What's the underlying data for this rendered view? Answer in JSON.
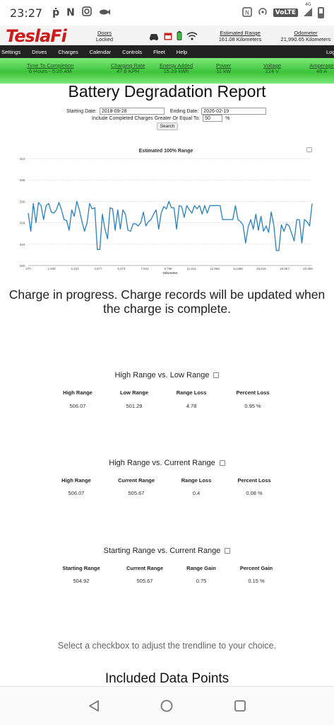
{
  "status": {
    "time": "23:27",
    "icons": [
      "p-icon",
      "n-icon",
      "instagram-icon",
      "fish-icon"
    ],
    "right_icons": [
      "nfc-icon",
      "hotspot-icon",
      "volte-icon",
      "signal-icon",
      "battery-icon"
    ],
    "volte": "VoLTE",
    "network": "4G"
  },
  "app": {
    "logo": "TeslaFi",
    "doors_label": "Doors",
    "doors_value": "Locked",
    "est_range_label": "Estimated Range",
    "est_range_value": "161.08 Kilometers",
    "odometer_label": "Odometer",
    "odometer_value": "21,990.65 Kilometers"
  },
  "nav": [
    "Settings",
    "Drives",
    "Charges",
    "Calendar",
    "Controls",
    "Fleet",
    "Help"
  ],
  "nav_logout": "Logout",
  "charging": {
    "items": [
      {
        "label": "Time To Completion",
        "value": "6 Hours - 5:26 AM"
      },
      {
        "label": "Charging Rate",
        "value": "47.6 KPH"
      },
      {
        "label": "Energy Added",
        "value": "15.29 kWh"
      },
      {
        "label": "Power",
        "value": "11 kW"
      },
      {
        "label": "Voltage",
        "value": "224 V"
      },
      {
        "label": "Amperage",
        "value": "48 A"
      }
    ]
  },
  "page": {
    "title": "Battery Degradation Report",
    "start_label": "Starting Date:",
    "start_value": "2018-09-28",
    "end_label": "Ending Date:",
    "end_value": "2026-02-19",
    "include_label": "Include Completed Charges Greater Or Equal To:",
    "include_value": "50",
    "include_unit": "%",
    "search_label": "Search"
  },
  "chart_data": {
    "type": "line",
    "title": "Estimated 100% Range",
    "xlabel": "Odometer",
    "ylabel": "",
    "ylim": [
      500,
      510
    ],
    "yticks": [
      "500",
      "502",
      "504",
      "506",
      "508",
      "510"
    ],
    "xticks": [
      "270",
      "1,935",
      "3,423",
      "4,877",
      "6,274",
      "7,844",
      "9,788",
      "11,311",
      "12,956",
      "14,686",
      "16,816",
      "18,957",
      "20,806"
    ],
    "series": [
      {
        "color": "#2a7fc0",
        "values": [
          504.9,
          503.2,
          505.8,
          504.0,
          505.9,
          505.6,
          504.3,
          505.6,
          505.8,
          505.0,
          504.9,
          505.2,
          505.9,
          505.2,
          504.3,
          504.2,
          503.3,
          505.2,
          504.6,
          506.0,
          505.2,
          504.1,
          503.2,
          504.0,
          505.8,
          505.3,
          505.4,
          501.5,
          501.5,
          504.8,
          503.4,
          502.5,
          505.4,
          505.3,
          503.3,
          505.2,
          503.4,
          505.2,
          504.8,
          503.3,
          503.2,
          503.9,
          503.9,
          503.7,
          504.0,
          505.0,
          503.7,
          504.1,
          504.3,
          504.8,
          505.2,
          503.4,
          504.9,
          505.5,
          505.3,
          506.0,
          505.4,
          505.4,
          503.4,
          505.6,
          505.5,
          504.5,
          505.6,
          505.2,
          504.9,
          505.6,
          505.3,
          505.6,
          504.8,
          505.6,
          504.9,
          505.6,
          505.6,
          505.6,
          505.6,
          505.6,
          504.3,
          504.3,
          504.3,
          504.3,
          504.3,
          505.6,
          504.3,
          504.1,
          503.8,
          502.1,
          503.6,
          504.3,
          503.4,
          504.8,
          503.3,
          504.6,
          503.2,
          503.7,
          503.1,
          505.0,
          503.8,
          501.4,
          501.4,
          503.8,
          503.2,
          503.9,
          503.7,
          503.0,
          502.3,
          504.3,
          504.3,
          502.1,
          504.3,
          504.1,
          503.7,
          505.8
        ]
      }
    ]
  },
  "charge_msg": "Charge in progress. Charge records will be updated when the charge is complete.",
  "sections": [
    {
      "title": "High Range vs. Low Range",
      "headers": [
        "High Range",
        "Low Range",
        "Range Loss",
        "Percent Loss"
      ],
      "values": [
        "506.07",
        "501.29",
        "4.78",
        "0.95 %"
      ]
    },
    {
      "title": "High Range vs. Current Range",
      "headers": [
        "High Range",
        "Current Range",
        "Range Loss",
        "Percent Loss"
      ],
      "values": [
        "506.07",
        "505.67",
        "0.4",
        "0.08 %"
      ]
    },
    {
      "title": "Starting Range vs. Current Range",
      "headers": [
        "Starting Range",
        "Current Range",
        "Range Gain",
        "Percent Gain"
      ],
      "values": [
        "504.92",
        "505.67",
        "0.75",
        "0.15 %"
      ]
    }
  ],
  "hint": "Select a checkbox to adjust the trendline to your choice.",
  "included": "Included Data Points"
}
